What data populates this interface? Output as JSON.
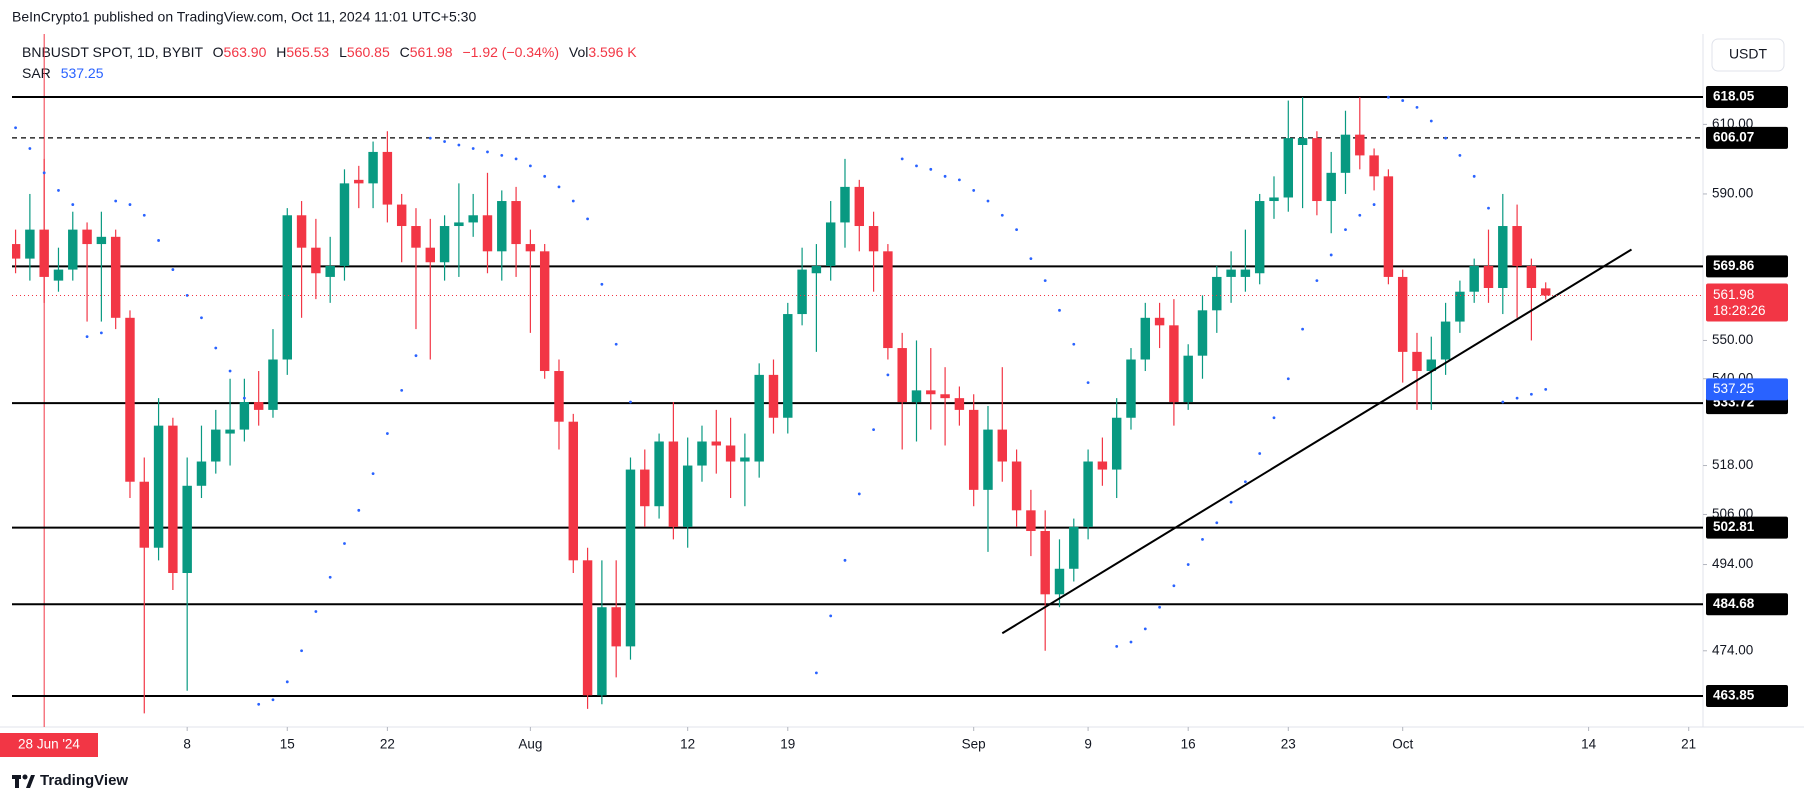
{
  "header": {
    "publisher": "BeInCrypto1 published on TradingView.com, Oct 11, 2024 11:01 UTC+5:30",
    "symbol": "BNBUSDT SPOT, 1D, BYBIT",
    "ohlc": [
      {
        "key": "O",
        "value": "563.90"
      },
      {
        "key": "H",
        "value": "565.53"
      },
      {
        "key": "L",
        "value": "560.85"
      },
      {
        "key": "C",
        "value": "561.98"
      }
    ],
    "change": "−1.92 (−0.34%)",
    "volume": {
      "key": "Vol",
      "value": "3.596 K"
    },
    "currency": "USDT"
  },
  "footer": {
    "brand": "TradingView"
  },
  "chart_data": {
    "type": "candlestick",
    "log_scale": true,
    "grid": false,
    "up_color": "#089981",
    "down_color": "#f23645",
    "x": [
      "2024-06-26",
      "2024-06-27",
      "2024-06-28",
      "2024-06-29",
      "2024-06-30",
      "2024-07-01",
      "2024-07-02",
      "2024-07-03",
      "2024-07-04",
      "2024-07-05",
      "2024-07-06",
      "2024-07-07",
      "2024-07-08",
      "2024-07-09",
      "2024-07-10",
      "2024-07-11",
      "2024-07-12",
      "2024-07-13",
      "2024-07-14",
      "2024-07-15",
      "2024-07-16",
      "2024-07-17",
      "2024-07-18",
      "2024-07-19",
      "2024-07-20",
      "2024-07-21",
      "2024-07-22",
      "2024-07-23",
      "2024-07-24",
      "2024-07-25",
      "2024-07-26",
      "2024-07-27",
      "2024-07-28",
      "2024-07-29",
      "2024-07-30",
      "2024-07-31",
      "2024-08-01",
      "2024-08-02",
      "2024-08-03",
      "2024-08-04",
      "2024-08-05",
      "2024-08-06",
      "2024-08-07",
      "2024-08-08",
      "2024-08-09",
      "2024-08-10",
      "2024-08-11",
      "2024-08-12",
      "2024-08-13",
      "2024-08-14",
      "2024-08-15",
      "2024-08-16",
      "2024-08-17",
      "2024-08-18",
      "2024-08-19",
      "2024-08-20",
      "2024-08-21",
      "2024-08-22",
      "2024-08-23",
      "2024-08-24",
      "2024-08-25",
      "2024-08-26",
      "2024-08-27",
      "2024-08-28",
      "2024-08-29",
      "2024-08-30",
      "2024-08-31",
      "2024-09-01",
      "2024-09-02",
      "2024-09-03",
      "2024-09-04",
      "2024-09-05",
      "2024-09-06",
      "2024-09-07",
      "2024-09-08",
      "2024-09-09",
      "2024-09-10",
      "2024-09-11",
      "2024-09-12",
      "2024-09-13",
      "2024-09-14",
      "2024-09-15",
      "2024-09-16",
      "2024-09-17",
      "2024-09-18",
      "2024-09-19",
      "2024-09-20",
      "2024-09-21",
      "2024-09-22",
      "2024-09-23",
      "2024-09-24",
      "2024-09-25",
      "2024-09-26",
      "2024-09-27",
      "2024-09-28",
      "2024-09-29",
      "2024-09-30",
      "2024-10-01",
      "2024-10-02",
      "2024-10-03",
      "2024-10-04",
      "2024-10-05",
      "2024-10-06",
      "2024-10-07",
      "2024-10-08",
      "2024-10-09",
      "2024-10-10",
      "2024-10-11"
    ],
    "open": [
      576,
      572,
      580,
      566,
      569,
      580,
      576,
      578,
      556,
      514,
      498,
      528,
      492,
      513,
      519,
      526,
      527,
      534,
      532,
      545,
      584,
      575,
      567,
      570,
      594,
      593,
      602,
      587,
      581,
      575,
      571,
      581,
      582,
      584,
      574,
      588,
      576,
      574,
      542,
      529,
      495,
      464,
      484,
      475,
      517,
      508,
      524,
      503,
      518,
      524,
      523,
      519,
      519,
      541,
      530,
      557,
      568,
      570,
      582,
      592,
      581,
      574,
      548,
      534,
      537,
      536,
      535,
      532,
      512,
      527,
      519,
      507,
      502,
      487,
      493,
      503,
      519,
      517,
      530,
      545,
      556,
      554,
      534,
      546,
      558,
      567,
      567,
      568,
      588,
      589,
      604,
      606,
      588,
      596,
      607,
      601,
      595,
      567,
      547,
      542,
      545,
      555,
      563,
      570,
      564,
      581,
      570,
      563.9
    ],
    "high": [
      580,
      590,
      600,
      575,
      585,
      582,
      585,
      580,
      558,
      520,
      535,
      530,
      520,
      528,
      532,
      540,
      540,
      542,
      553,
      586,
      588,
      583,
      578,
      597,
      598,
      605,
      608,
      590,
      586,
      583,
      584,
      593,
      590,
      596,
      591,
      592,
      580,
      576,
      545,
      531,
      498,
      495,
      495,
      520,
      522,
      526,
      534,
      525,
      528,
      532,
      530,
      526,
      544,
      545,
      560,
      575,
      576,
      588,
      600,
      594,
      585,
      576,
      552,
      550,
      548,
      543,
      538,
      536,
      533,
      543,
      522,
      512,
      507,
      500,
      505,
      522,
      525,
      535,
      548,
      560,
      560,
      561,
      549,
      562,
      570,
      574,
      580,
      590,
      595,
      617,
      618,
      608,
      602,
      614,
      618,
      603,
      597,
      569,
      552,
      551,
      560,
      566,
      572,
      580,
      590,
      587,
      572,
      565.53
    ],
    "low": [
      568,
      566,
      560,
      563,
      566,
      555,
      555,
      553,
      510,
      460,
      495,
      488,
      465,
      510,
      516,
      518,
      524,
      528,
      530,
      541,
      556,
      561,
      560,
      566,
      586,
      586,
      582,
      571,
      553,
      545,
      566,
      567,
      578,
      568,
      566,
      567,
      552,
      540,
      522,
      492,
      461,
      462,
      468,
      472,
      503,
      505,
      500,
      498,
      514,
      516,
      510,
      508,
      515,
      526,
      526,
      554,
      547,
      566,
      575,
      574,
      563,
      545,
      522,
      524,
      527,
      523,
      528,
      508,
      497,
      514,
      503,
      496,
      474,
      484,
      490,
      500,
      513,
      510,
      527,
      542,
      548,
      528,
      532,
      540,
      552,
      560,
      563,
      565,
      583,
      585,
      586,
      584,
      579,
      590,
      597,
      591,
      565,
      539,
      532,
      532,
      541,
      552,
      560,
      560,
      557,
      556,
      550,
      560.85
    ],
    "close": [
      572,
      580,
      567,
      569,
      580,
      576,
      578,
      556,
      514,
      498,
      528,
      492,
      513,
      519,
      527,
      527,
      534,
      532,
      545,
      584,
      575,
      568,
      570,
      593,
      593,
      602,
      587,
      581,
      575,
      571,
      581,
      582,
      584,
      574,
      588,
      576,
      574,
      542,
      529,
      495,
      464,
      484,
      475,
      517,
      508,
      524,
      503,
      518,
      524,
      523,
      519,
      520,
      541,
      530,
      557,
      569,
      570,
      582,
      592,
      581,
      574,
      548,
      534,
      537,
      536,
      535,
      532,
      512,
      527,
      519,
      507,
      502,
      487,
      493,
      503,
      519,
      517,
      530,
      545,
      556,
      554,
      534,
      546,
      558,
      567,
      569,
      569,
      588,
      589,
      606,
      606,
      588,
      596,
      607,
      601,
      595,
      567,
      547,
      542,
      545,
      555,
      563,
      570,
      564,
      581,
      570,
      564,
      561.98
    ],
    "sar": {
      "name": "SAR",
      "color": "#2962ff",
      "values": [
        609,
        603,
        596,
        591,
        587,
        551,
        552,
        588,
        587,
        584,
        577,
        569,
        562,
        556,
        548,
        542,
        535,
        462,
        463,
        467,
        474,
        483,
        491,
        499,
        507,
        516,
        526,
        537,
        546,
        606,
        605,
        604,
        603,
        602,
        601,
        600,
        598,
        595,
        592,
        588,
        583,
        565,
        549,
        534,
        null,
        null,
        null,
        null,
        null,
        null,
        null,
        null,
        null,
        null,
        null,
        null,
        469,
        482,
        495,
        511,
        527,
        541,
        600,
        598,
        597,
        595,
        594,
        591,
        588,
        584,
        580,
        572,
        566,
        558,
        549,
        539,
        null,
        475,
        476,
        479,
        484,
        489,
        494,
        500,
        504,
        509,
        514,
        521,
        530,
        540,
        553,
        566,
        573,
        580,
        584,
        587,
        618,
        617,
        615,
        611,
        606,
        601,
        595,
        586,
        534,
        535,
        536,
        537.25
      ]
    },
    "countdown": "18:28:26",
    "levels": [
      {
        "value": 618.05,
        "style": "solid"
      },
      {
        "value": 606.07,
        "style": "dashed"
      },
      {
        "value": 569.86,
        "style": "solid"
      },
      {
        "value": 533.72,
        "style": "solid"
      },
      {
        "value": 502.81,
        "style": "solid"
      },
      {
        "value": 484.68,
        "style": "solid"
      },
      {
        "value": 463.85,
        "style": "solid"
      }
    ],
    "trendline": {
      "start": [
        "2024-09-03",
        478
      ],
      "end": [
        "2024-10-17",
        574.5
      ]
    },
    "marker_date": {
      "value": "2024-06-28",
      "label": "28 Jun '24"
    },
    "xlim": [
      "2024-06-25T18:00:00Z",
      "2024-10-22T00:00:00Z"
    ],
    "xticks": [
      {
        "value": "2024-07-08",
        "label": "8"
      },
      {
        "value": "2024-07-15",
        "label": "15"
      },
      {
        "value": "2024-07-22",
        "label": "22"
      },
      {
        "value": "2024-08-01",
        "label": "Aug"
      },
      {
        "value": "2024-08-12",
        "label": "12"
      },
      {
        "value": "2024-08-19",
        "label": "19"
      },
      {
        "value": "2024-09-01",
        "label": "Sep"
      },
      {
        "value": "2024-09-09",
        "label": "9"
      },
      {
        "value": "2024-09-16",
        "label": "16"
      },
      {
        "value": "2024-09-23",
        "label": "23"
      },
      {
        "value": "2024-10-01",
        "label": "Oct"
      },
      {
        "value": "2024-10-14",
        "label": "14"
      },
      {
        "value": "2024-10-21",
        "label": "21"
      }
    ],
    "ylim": [
      457,
      637
    ],
    "yticks": [
      {
        "value": 474,
        "label": "474.00"
      },
      {
        "value": 494,
        "label": "494.00"
      },
      {
        "value": 506,
        "label": "506.00"
      },
      {
        "value": 518,
        "label": "518.00"
      },
      {
        "value": 540,
        "label": "540.00"
      },
      {
        "value": 550,
        "label": "550.00"
      },
      {
        "value": 590,
        "label": "590.00"
      },
      {
        "value": 610,
        "label": "610.00"
      }
    ]
  }
}
